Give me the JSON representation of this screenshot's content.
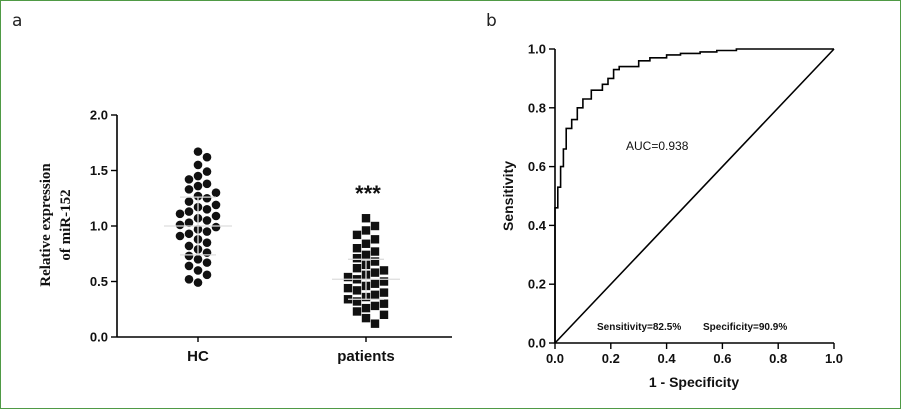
{
  "panels": {
    "a": "a",
    "b": "b"
  },
  "chart_data": [
    {
      "type": "scatter",
      "ylabel_line1": "Relative expression",
      "ylabel_line2": "of miR-152",
      "ylim": [
        0,
        2.0
      ],
      "yticks": [
        "0.0",
        "0.5",
        "1.0",
        "1.5",
        "2.0"
      ],
      "yticks_values": [
        0,
        0.5,
        1.0,
        1.5,
        2.0
      ],
      "categories": [
        "HC",
        "patients"
      ],
      "significance": "***",
      "grid": false,
      "groups": [
        {
          "category": "HC",
          "marker": "circle",
          "mean": 1.0,
          "sd": 0.26,
          "values": [
            1.67,
            1.62,
            1.55,
            1.49,
            1.45,
            1.42,
            1.38,
            1.36,
            1.33,
            1.3,
            1.27,
            1.25,
            1.22,
            1.19,
            1.17,
            1.15,
            1.13,
            1.11,
            1.09,
            1.07,
            1.05,
            1.03,
            1.01,
            0.99,
            0.97,
            0.95,
            0.93,
            0.91,
            0.88,
            0.85,
            0.82,
            0.79,
            0.76,
            0.73,
            0.7,
            0.67,
            0.64,
            0.6,
            0.56,
            0.52,
            0.49
          ]
        },
        {
          "category": "patients",
          "marker": "square",
          "mean": 0.52,
          "sd": 0.18,
          "values": [
            1.07,
            1.0,
            0.96,
            0.92,
            0.88,
            0.84,
            0.8,
            0.77,
            0.74,
            0.71,
            0.68,
            0.65,
            0.62,
            0.6,
            0.58,
            0.56,
            0.54,
            0.52,
            0.5,
            0.48,
            0.46,
            0.44,
            0.42,
            0.4,
            0.38,
            0.36,
            0.34,
            0.32,
            0.3,
            0.28,
            0.26,
            0.23,
            0.2,
            0.17,
            0.12
          ]
        }
      ]
    },
    {
      "type": "line",
      "xlabel": "1 - Specificity",
      "ylabel": "Sensitivity",
      "xlim": [
        0,
        1.0
      ],
      "ylim": [
        0,
        1.0
      ],
      "xticks": [
        "0.0",
        "0.2",
        "0.4",
        "0.6",
        "0.8",
        "1.0"
      ],
      "yticks": [
        "0.0",
        "0.2",
        "0.4",
        "0.6",
        "0.8",
        "1.0"
      ],
      "tick_values": [
        0,
        0.2,
        0.4,
        0.6,
        0.8,
        1.0
      ],
      "auc_text": "AUC=0.938",
      "sensitivity_text": "Sensitivity=82.5%",
      "specificity_text": "Specificity=90.9%",
      "grid": false,
      "roc": {
        "x": [
          0,
          0,
          0.01,
          0.01,
          0.02,
          0.02,
          0.03,
          0.03,
          0.04,
          0.04,
          0.06,
          0.06,
          0.08,
          0.08,
          0.1,
          0.1,
          0.13,
          0.13,
          0.17,
          0.17,
          0.19,
          0.19,
          0.21,
          0.21,
          0.23,
          0.23,
          0.3,
          0.3,
          0.34,
          0.34,
          0.4,
          0.4,
          0.45,
          0.45,
          0.52,
          0.52,
          0.58,
          0.58,
          0.65,
          0.65,
          1.0
        ],
        "y": [
          0,
          0.46,
          0.46,
          0.53,
          0.53,
          0.6,
          0.6,
          0.66,
          0.66,
          0.73,
          0.73,
          0.76,
          0.76,
          0.8,
          0.8,
          0.83,
          0.83,
          0.86,
          0.86,
          0.88,
          0.88,
          0.9,
          0.9,
          0.93,
          0.93,
          0.94,
          0.94,
          0.96,
          0.96,
          0.97,
          0.97,
          0.98,
          0.98,
          0.985,
          0.985,
          0.99,
          0.99,
          0.995,
          0.995,
          1.0,
          1.0
        ]
      },
      "reference_line": {
        "x": [
          0,
          1.0
        ],
        "y": [
          0,
          1.0
        ]
      }
    }
  ]
}
